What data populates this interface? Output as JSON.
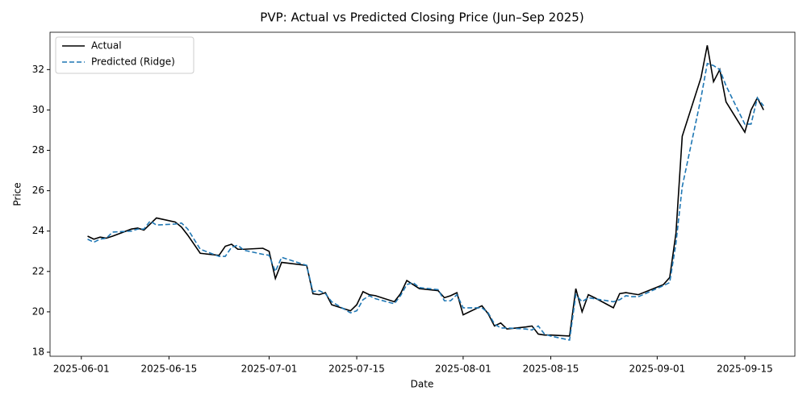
{
  "chart_data": {
    "type": "line",
    "title": "PVP: Actual vs Predicted Closing Price (Jun–Sep 2025)",
    "xlabel": "Date",
    "ylabel": "Price",
    "x": [
      "2025-06-02",
      "2025-06-03",
      "2025-06-04",
      "2025-06-05",
      "2025-06-06",
      "2025-06-09",
      "2025-06-10",
      "2025-06-11",
      "2025-06-12",
      "2025-06-13",
      "2025-06-16",
      "2025-06-17",
      "2025-06-18",
      "2025-06-20",
      "2025-06-23",
      "2025-06-24",
      "2025-06-25",
      "2025-06-26",
      "2025-06-27",
      "2025-06-30",
      "2025-07-01",
      "2025-07-02",
      "2025-07-03",
      "2025-07-07",
      "2025-07-08",
      "2025-07-09",
      "2025-07-10",
      "2025-07-11",
      "2025-07-14",
      "2025-07-15",
      "2025-07-16",
      "2025-07-17",
      "2025-07-18",
      "2025-07-21",
      "2025-07-22",
      "2025-07-23",
      "2025-07-24",
      "2025-07-25",
      "2025-07-28",
      "2025-07-29",
      "2025-07-30",
      "2025-07-31",
      "2025-08-01",
      "2025-08-04",
      "2025-08-05",
      "2025-08-06",
      "2025-08-07",
      "2025-08-08",
      "2025-08-11",
      "2025-08-12",
      "2025-08-13",
      "2025-08-14",
      "2025-08-15",
      "2025-08-18",
      "2025-08-19",
      "2025-08-20",
      "2025-08-21",
      "2025-08-22",
      "2025-08-25",
      "2025-08-26",
      "2025-08-27",
      "2025-08-28",
      "2025-08-29",
      "2025-09-02",
      "2025-09-03",
      "2025-09-04",
      "2025-09-05",
      "2025-09-08",
      "2025-09-09",
      "2025-09-10",
      "2025-09-11",
      "2025-09-12",
      "2025-09-15",
      "2025-09-16",
      "2025-09-17",
      "2025-09-18"
    ],
    "series": [
      {
        "name": "Actual",
        "color": "#000000",
        "linestyle": "solid",
        "values": [
          23.75,
          23.6,
          23.7,
          23.65,
          23.75,
          24.1,
          24.15,
          24.05,
          24.35,
          24.65,
          24.45,
          24.2,
          23.8,
          22.9,
          22.8,
          23.25,
          23.35,
          23.1,
          23.1,
          23.15,
          23.0,
          21.65,
          22.45,
          22.3,
          20.9,
          20.85,
          20.95,
          20.35,
          20.05,
          20.35,
          21.0,
          20.85,
          20.8,
          20.5,
          20.9,
          21.55,
          21.35,
          21.15,
          21.05,
          20.7,
          20.8,
          20.95,
          19.85,
          20.3,
          19.9,
          19.3,
          19.45,
          19.15,
          19.25,
          19.3,
          18.9,
          18.85,
          18.85,
          18.8,
          21.15,
          20.0,
          20.85,
          20.7,
          20.2,
          20.9,
          20.95,
          20.9,
          20.85,
          21.35,
          21.7,
          23.9,
          28.7,
          31.6,
          33.2,
          31.4,
          32.0,
          30.4,
          28.9,
          30.0,
          30.6,
          30.0
        ]
      },
      {
        "name": "Predicted (Ridge)",
        "color": "#1f77b4",
        "linestyle": "dashed",
        "values": [
          23.6,
          23.45,
          23.6,
          23.65,
          23.95,
          24.0,
          24.1,
          24.1,
          24.5,
          24.3,
          24.35,
          24.4,
          24.1,
          23.1,
          22.75,
          22.75,
          23.2,
          23.3,
          23.05,
          22.85,
          22.8,
          22.0,
          22.7,
          22.3,
          21.0,
          21.05,
          20.9,
          20.5,
          19.95,
          20.05,
          20.6,
          20.8,
          20.65,
          20.4,
          20.8,
          21.35,
          21.45,
          21.2,
          21.1,
          20.55,
          20.55,
          20.85,
          20.2,
          20.2,
          19.95,
          19.4,
          19.2,
          19.2,
          19.15,
          19.1,
          19.3,
          18.9,
          18.8,
          18.6,
          20.85,
          20.5,
          20.7,
          20.65,
          20.5,
          20.6,
          20.8,
          20.75,
          20.75,
          21.3,
          21.45,
          23.4,
          26.2,
          30.6,
          32.3,
          32.2,
          32.0,
          31.2,
          29.3,
          29.3,
          30.6,
          30.2
        ]
      }
    ],
    "xlim": [
      "2025-05-27",
      "2025-09-23"
    ],
    "xticks": [
      "2025-06-01",
      "2025-06-15",
      "2025-07-01",
      "2025-07-15",
      "2025-08-01",
      "2025-08-15",
      "2025-09-01",
      "2025-09-15"
    ],
    "ylim": [
      17.8,
      33.85
    ],
    "yticks": [
      18,
      20,
      22,
      24,
      26,
      28,
      30,
      32
    ],
    "grid": false,
    "legend": "upper left"
  }
}
